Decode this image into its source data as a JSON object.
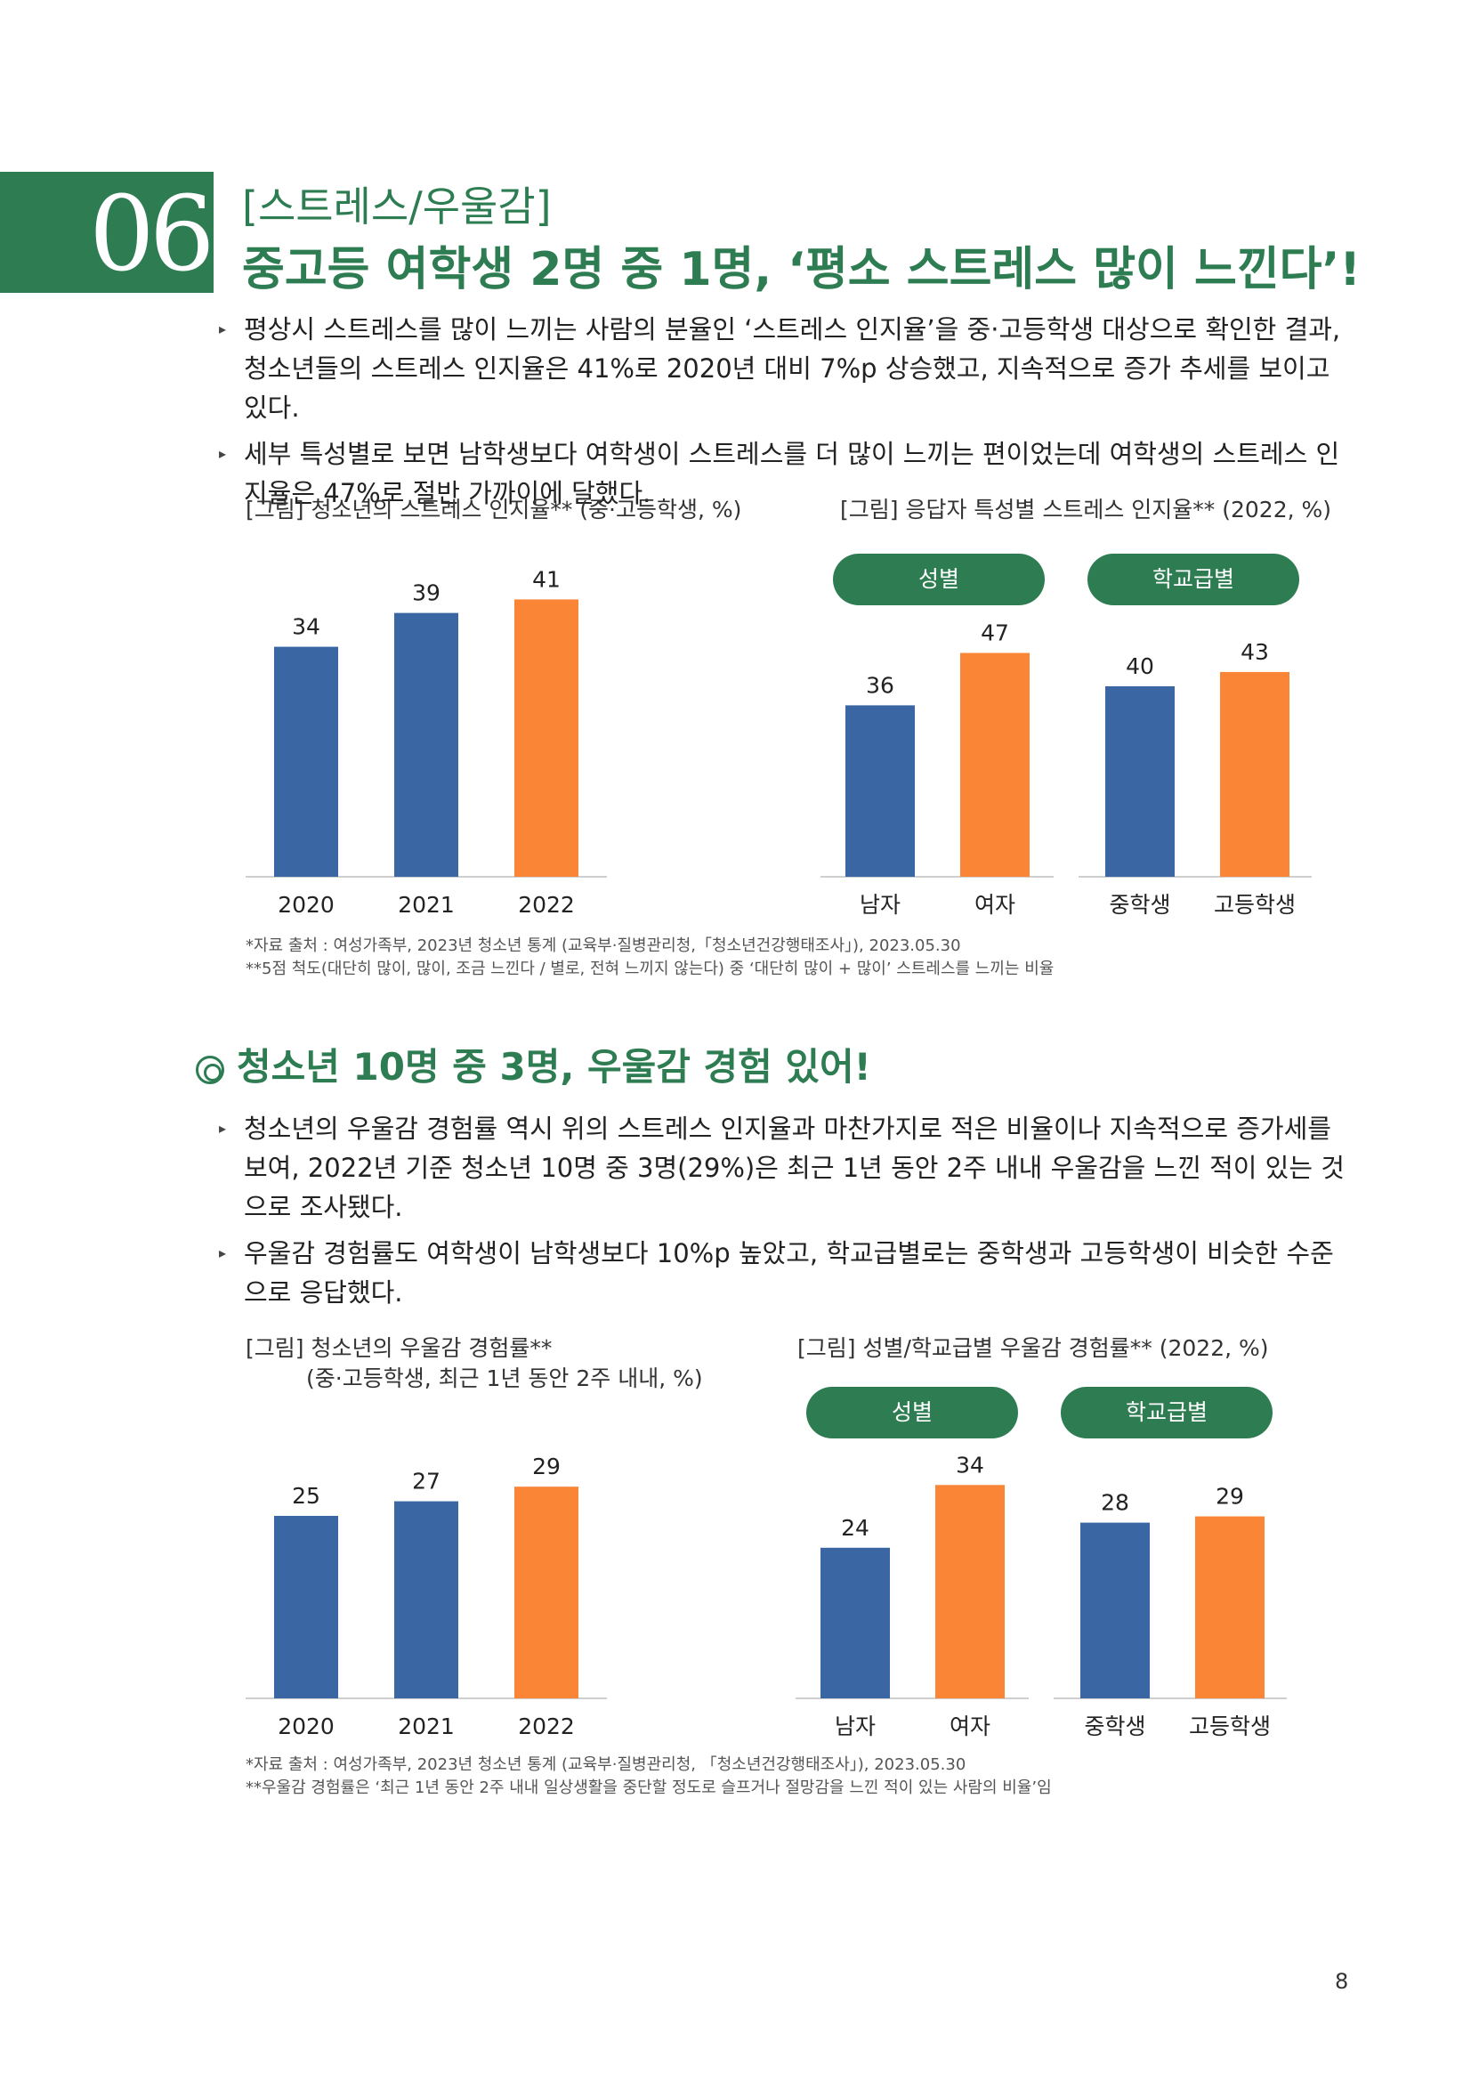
{
  "section": {
    "number": "06",
    "tag": "[스트레스/우울감]",
    "title": "중고등 여학생 2명 중 1명, ‘평소 스트레스 많이 느낀다’!"
  },
  "bullets1": [
    "평상시 스트레스를 많이 느끼는 사람의 분율인 ‘스트레스 인지율’을 중·고등학생 대상으로 확인한 결과, 청소년들의 스트레스 인지율은 41%로 2020년 대비 7%p 상승했고, 지속적으로 증가 추세를 보이고 있다.",
    "세부 특성별로 보면 남학생보다 여학생이 스트레스를 더 많이 느끼는 편이었는데 여학생의 스트레스 인지율은 47%로 절반 가까이에 달했다."
  ],
  "figures1": {
    "left_title": "[그림] 청소년의 스트레스 인지율** (중·고등학생, %)",
    "right_title": "[그림] 응답자 특성별 스트레스 인지율** (2022, %)",
    "pill_gender": "성별",
    "pill_school": "학교급별"
  },
  "notes1": [
    "*자료 출처 : 여성가족부, 2023년 청소년 통계 (교육부·질병관리청,「청소년건강행태조사」), 2023.05.30",
    "**5점 척도(대단히 많이, 많이, 조금 느낀다 / 별로, 전혀 느끼지 않는다) 중 ‘대단히 많이 + 많이’ 스트레스를 느끼는 비율"
  ],
  "subsection": {
    "title": "청소년 10명 중 3명, 우울감 경험 있어!"
  },
  "bullets2": [
    "청소년의 우울감 경험률 역시 위의 스트레스 인지율과 마찬가지로 적은 비율이나 지속적으로 증가세를 보여, 2022년 기준 청소년 10명 중 3명(29%)은 최근 1년 동안 2주 내내 우울감을 느낀 적이 있는 것으로 조사됐다.",
    "우울감 경험률도 여학생이 남학생보다 10%p 높았고, 학교급별로는 중학생과 고등학생이 비슷한 수준으로 응답했다."
  ],
  "figures2": {
    "left_title_line1": "[그림] 청소년의 우울감 경험률**",
    "left_title_line2": "(중·고등학생, 최근 1년 동안 2주 내내, %)",
    "right_title": "[그림] 성별/학교급별 우울감 경험률** (2022, %)",
    "pill_gender": "성별",
    "pill_school": "학교급별"
  },
  "notes2": [
    "*자료 출처 : 여성가족부, 2023년 청소년 통계 (교육부·질병관리청, 「청소년건강행태조사」), 2023.05.30",
    "**우울감 경험률은 ‘최근 1년 동안 2주 내내 일상생활을 중단할 정도로 슬프거나 절망감을 느낀 적이 있는 사람의 비율’임"
  ],
  "page_number": "8",
  "colors": {
    "blue": "#3a66a3",
    "orange": "#fb8537",
    "green": "#2e7d52"
  },
  "chart_data": [
    {
      "type": "bar",
      "title": "[그림] 청소년의 스트레스 인지율** (중·고등학생, %)",
      "categories": [
        "2020",
        "2021",
        "2022"
      ],
      "values": [
        34,
        39,
        41
      ]
    },
    {
      "type": "bar",
      "title": "[그림] 응답자 특성별 스트레스 인지율** (2022, %)",
      "groups": [
        "성별",
        "학교급별"
      ],
      "categories": [
        "남자",
        "여자",
        "중학생",
        "고등학생"
      ],
      "values": [
        36,
        47,
        40,
        43
      ]
    },
    {
      "type": "bar",
      "title": "[그림] 청소년의 우울감 경험률** (중·고등학생, 최근 1년 동안 2주 내내, %)",
      "categories": [
        "2020",
        "2021",
        "2022"
      ],
      "values": [
        25,
        27,
        29
      ]
    },
    {
      "type": "bar",
      "title": "[그림] 성별/학교급별 우울감 경험률** (2022, %)",
      "groups": [
        "성별",
        "학교급별"
      ],
      "categories": [
        "남자",
        "여자",
        "중학생",
        "고등학생"
      ],
      "values": [
        24,
        34,
        28,
        29
      ]
    }
  ]
}
